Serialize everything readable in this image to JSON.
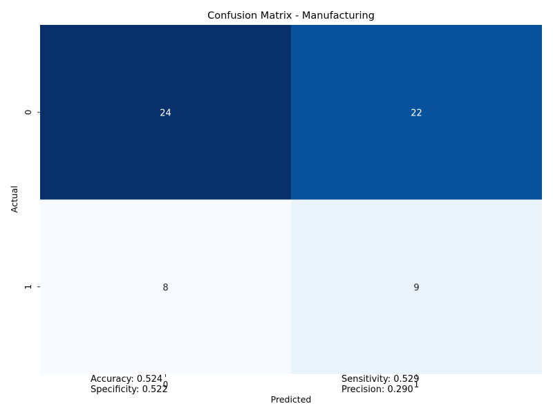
{
  "chart_data": {
    "type": "heatmap",
    "title": "Confusion Matrix - Manufacturing",
    "xlabel": "Predicted",
    "ylabel": "Actual",
    "x_categories": [
      "0",
      "1"
    ],
    "y_categories": [
      "0",
      "1"
    ],
    "values": [
      [
        24,
        22
      ],
      [
        8,
        9
      ]
    ],
    "colorscale": "Blues",
    "colorbar": false,
    "annotations": [
      "Accuracy: 0.524\nSpecificity: 0.522",
      "Sensitivity: 0.529\nPrecision: 0.290"
    ]
  }
}
